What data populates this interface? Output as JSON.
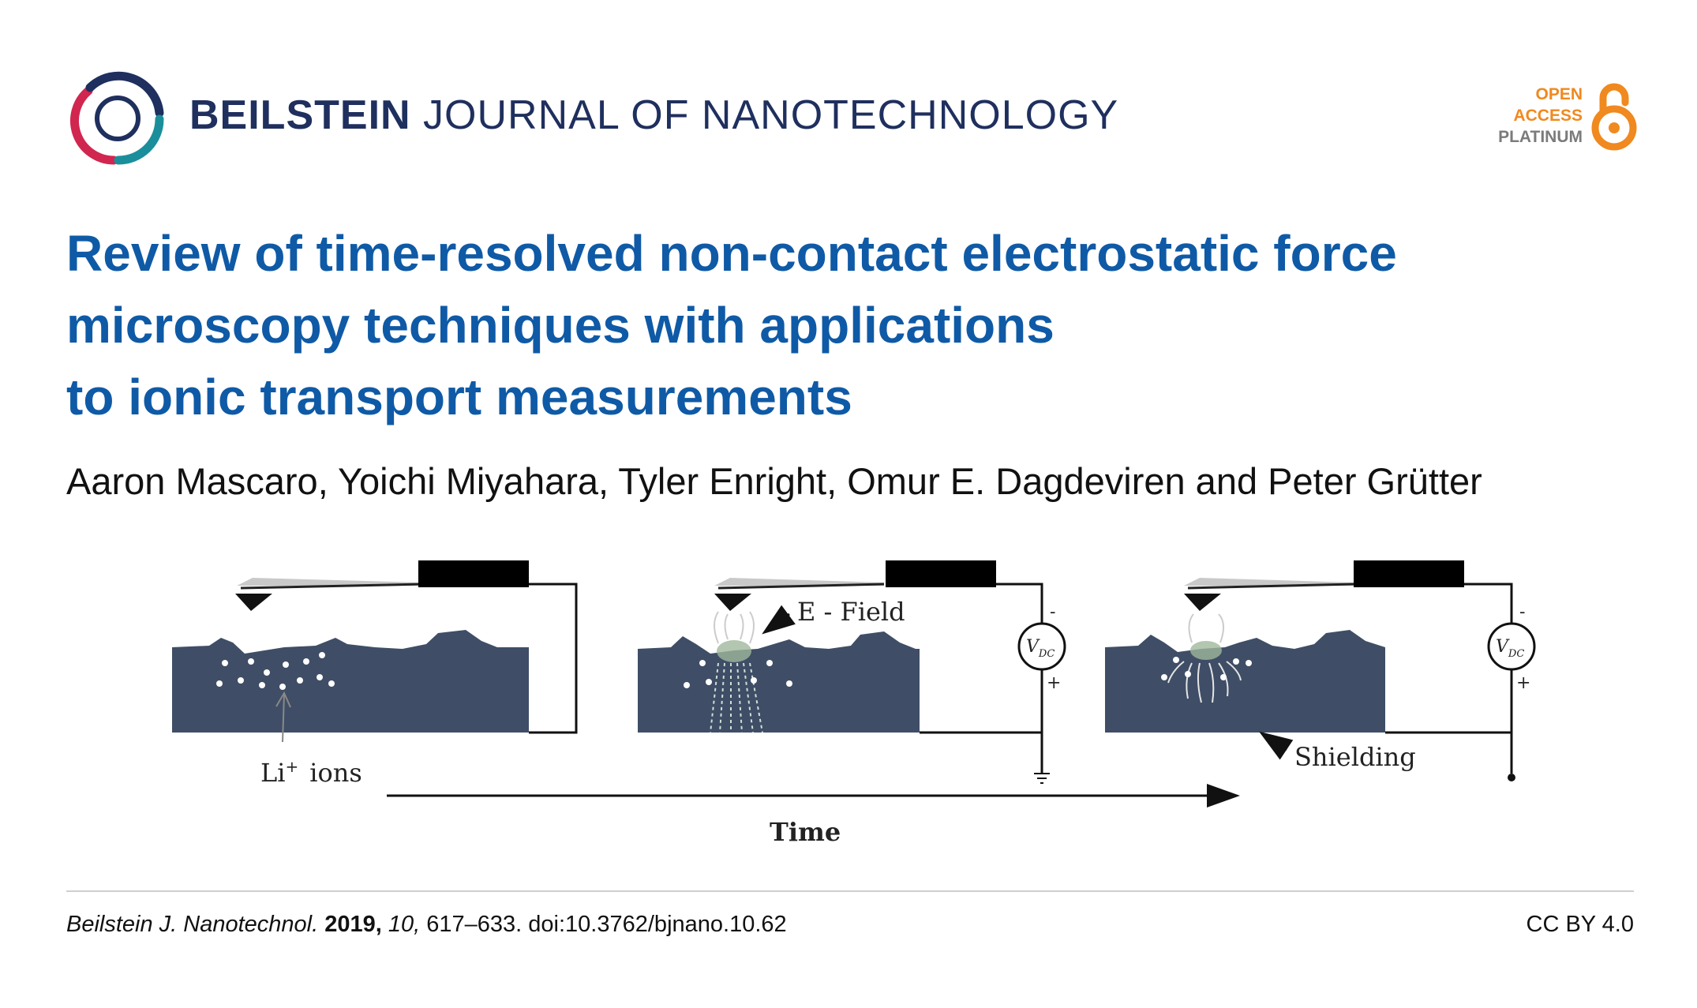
{
  "header": {
    "journal_bold": "BEILSTEIN",
    "journal_light": "JOURNAL OF NANOTECHNOLOGY",
    "badge": {
      "line1": "OPEN",
      "line2": "ACCESS",
      "line3": "PLATINUM",
      "color_orange": "#f0891f",
      "color_grey": "#7b7b7b"
    },
    "logo_colors": [
      "#d1264f",
      "#1f2f5e",
      "#1a8f9b"
    ]
  },
  "article": {
    "title_lines": [
      "Review of time-resolved non-contact electrostatic force",
      "microscopy techniques with applications",
      "to ionic transport measurements"
    ],
    "authors": "Aaron Mascaro, Yoichi Miyahara, Tyler Enright, Omur E. Dagdeviren and Peter Grütter",
    "title_color": "#0f5aa6"
  },
  "figure": {
    "label_li": "Li",
    "label_li_sup": "+",
    "label_ions": "ions",
    "label_efield": "E - Field",
    "label_shielding": "Shielding",
    "label_time": "Time",
    "vdc_main": "V",
    "vdc_sub": "DC",
    "minus": "-",
    "plus": "+",
    "sample_color": "#3f4e66"
  },
  "footer": {
    "journal_abbrev": "Beilstein J. Nanotechnol.",
    "year": "2019,",
    "volume": "10,",
    "pages_doi": "617–633. doi:10.3762/bjnano.10.62",
    "license": "CC BY 4.0"
  }
}
